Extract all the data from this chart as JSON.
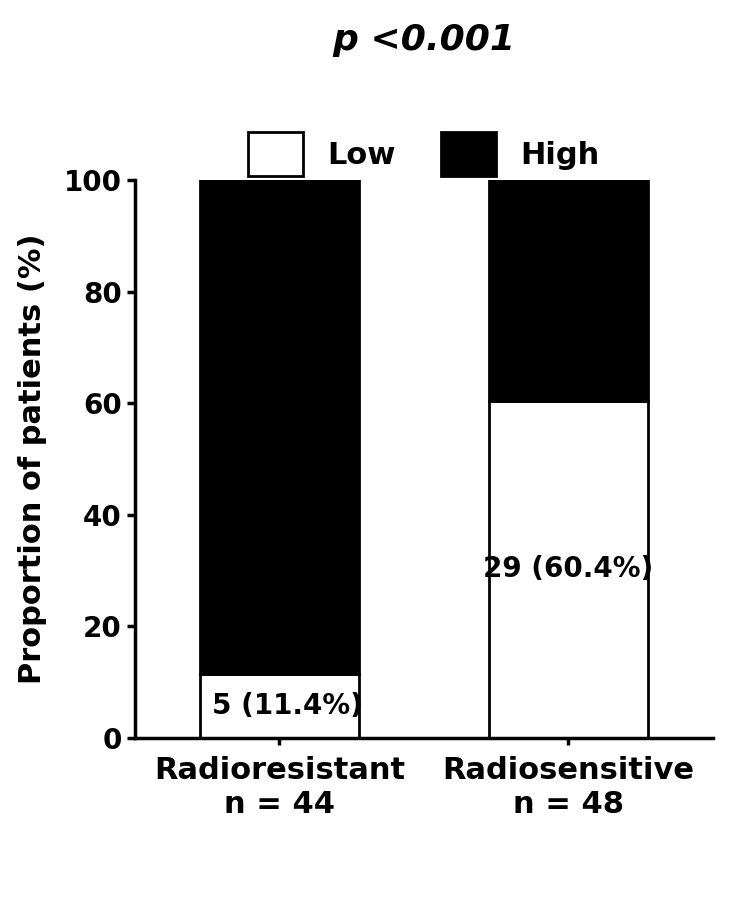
{
  "categories": [
    "Radioresistant\nn = 44",
    "Radiosensitive\nn = 48"
  ],
  "low_values": [
    11.4,
    60.4
  ],
  "high_values": [
    88.6,
    39.6
  ],
  "low_color": "#ffffff",
  "high_color": "#000000",
  "bar_edge_color": "#000000",
  "ylabel": "Proportion of patients (%)",
  "ylim": [
    0,
    100
  ],
  "yticks": [
    0,
    20,
    40,
    60,
    80,
    100
  ],
  "p_text": "p <0.001",
  "legend_labels": [
    "Low",
    "High"
  ],
  "bar1_low_label": "5 (11.4%)",
  "bar2_low_label": "29 (60.4%)",
  "bar_width": 0.55,
  "background_color": "#ffffff",
  "title_fontsize": 26,
  "label_fontsize": 22,
  "tick_fontsize": 20,
  "annotation_fontsize": 20,
  "legend_fontsize": 22
}
